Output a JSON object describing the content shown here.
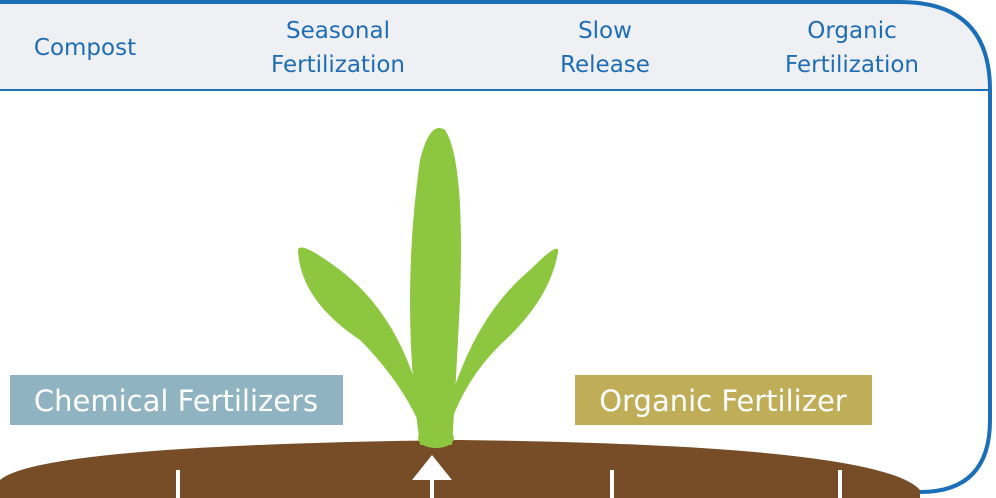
{
  "tabs": [
    [
      "Compost"
    ],
    [
      "Seasonal",
      "Fertilization"
    ],
    [
      "Slow",
      "Release"
    ],
    [
      "Organic",
      "Fertilization"
    ]
  ],
  "labels": {
    "left": "Chemical Fertilizers",
    "right": "Organic Fertilizer"
  }
}
